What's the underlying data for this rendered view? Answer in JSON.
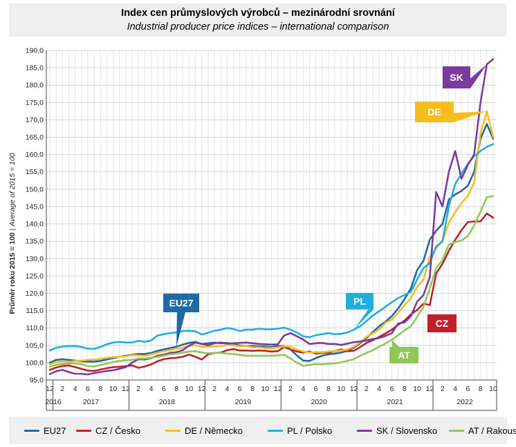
{
  "header": {
    "title_cs": "Index cen průmyslových výrobců – mezinárodní srovnání",
    "title_en": "Industrial producer price indices – international comparison"
  },
  "chart_data": {
    "type": "line",
    "ylabel_cs": "Průměr roku 2015 = 100",
    "ylabel_sep": " | ",
    "ylabel_en": "Average of 2015 = 100",
    "ylim": [
      95,
      190
    ],
    "yticks": [
      95,
      100,
      105,
      110,
      115,
      120,
      125,
      130,
      135,
      140,
      145,
      150,
      155,
      160,
      165,
      170,
      175,
      180,
      185,
      190
    ],
    "ytick_labels": [
      "95,0",
      "100,0",
      "105,0",
      "110,0",
      "115,0",
      "120,0",
      "125,0",
      "130,0",
      "135,0",
      "140,0",
      "145,0",
      "150,0",
      "155,0",
      "160,0",
      "165,0",
      "170,0",
      "175,0",
      "180,0",
      "185,0",
      "190,0"
    ],
    "months": [
      "12",
      "2",
      "4",
      "6",
      "8",
      "10",
      "12",
      "2",
      "4",
      "6",
      "8",
      "10",
      "12",
      "2",
      "4",
      "6",
      "8",
      "10",
      "12",
      "2",
      "4",
      "6",
      "8",
      "10",
      "12",
      "2",
      "4",
      "6",
      "8",
      "10",
      "12",
      "2",
      "4",
      "6",
      "8",
      "10"
    ],
    "years": [
      "2016",
      "2017",
      "2018",
      "2019",
      "2020",
      "2021",
      "2022"
    ],
    "x": [
      "2016-12",
      "2017-01",
      "2017-02",
      "2017-03",
      "2017-04",
      "2017-05",
      "2017-06",
      "2017-07",
      "2017-08",
      "2017-09",
      "2017-10",
      "2017-11",
      "2017-12",
      "2018-01",
      "2018-02",
      "2018-03",
      "2018-04",
      "2018-05",
      "2018-06",
      "2018-07",
      "2018-08",
      "2018-09",
      "2018-10",
      "2018-11",
      "2018-12",
      "2019-01",
      "2019-02",
      "2019-03",
      "2019-04",
      "2019-05",
      "2019-06",
      "2019-07",
      "2019-08",
      "2019-09",
      "2019-10",
      "2019-11",
      "2019-12",
      "2020-01",
      "2020-02",
      "2020-03",
      "2020-04",
      "2020-05",
      "2020-06",
      "2020-07",
      "2020-08",
      "2020-09",
      "2020-10",
      "2020-11",
      "2020-12",
      "2021-01",
      "2021-02",
      "2021-03",
      "2021-04",
      "2021-05",
      "2021-06",
      "2021-07",
      "2021-08",
      "2021-09",
      "2021-10",
      "2021-11",
      "2021-12",
      "2022-01",
      "2022-02",
      "2022-03",
      "2022-04",
      "2022-05",
      "2022-06",
      "2022-07",
      "2022-08",
      "2022-09",
      "2022-10"
    ],
    "grid": true,
    "legend_position": "bottom",
    "series": [
      {
        "name": "EU27",
        "color": "#1f6aa5",
        "values": [
          100.0,
          100.8,
          101.0,
          100.8,
          100.6,
          100.4,
          100.3,
          100.3,
          100.5,
          100.9,
          101.3,
          101.7,
          102.0,
          102.3,
          102.5,
          102.5,
          102.8,
          103.4,
          103.8,
          104.2,
          104.6,
          105.2,
          105.7,
          106.0,
          105.4,
          105.6,
          105.8,
          105.6,
          105.7,
          105.4,
          104.9,
          104.8,
          104.8,
          104.7,
          104.6,
          104.5,
          104.8,
          104.8,
          103.8,
          102.1,
          100.6,
          100.5,
          101.3,
          102.0,
          102.4,
          102.6,
          102.9,
          103.4,
          104.3,
          105.6,
          107.1,
          108.8,
          110.5,
          111.8,
          113.4,
          115.6,
          118.3,
          121.4,
          126.7,
          129.4,
          135.5,
          138.0,
          140.0,
          147.0,
          148.5,
          149.5,
          151.0,
          155.0,
          164.5,
          168.8,
          164.5
        ]
      },
      {
        "name": "CZ / Česko",
        "color": "#c0202b",
        "values": [
          97.9,
          98.6,
          99.0,
          99.2,
          98.7,
          98.2,
          97.7,
          97.6,
          98.0,
          98.4,
          98.7,
          98.8,
          99.0,
          99.2,
          98.5,
          98.9,
          99.5,
          100.4,
          101.0,
          101.3,
          101.4,
          101.7,
          102.3,
          101.7,
          100.9,
          102.4,
          102.8,
          102.9,
          103.6,
          103.9,
          103.5,
          103.5,
          103.4,
          103.5,
          103.4,
          103.2,
          103.3,
          104.5,
          103.8,
          103.2,
          102.9,
          103.2,
          102.6,
          102.8,
          102.9,
          103.3,
          103.8,
          103.3,
          103.4,
          104.5,
          105.7,
          106.5,
          107.4,
          108.4,
          109.5,
          110.9,
          112.1,
          113.9,
          115.2,
          117.0,
          116.6,
          125.7,
          128.5,
          132.2,
          135.4,
          138.2,
          140.5,
          140.7,
          140.7,
          143.0,
          141.8
        ]
      },
      {
        "name": "DE / Německo",
        "color": "#f5be1c",
        "values": [
          99.5,
          100.2,
          100.4,
          100.2,
          100.5,
          100.6,
          100.8,
          100.9,
          101.1,
          101.4,
          101.6,
          101.7,
          101.8,
          102.2,
          102.1,
          102.0,
          102.4,
          102.8,
          103.3,
          103.6,
          104.0,
          104.3,
          104.8,
          105.0,
          104.5,
          104.6,
          104.7,
          104.8,
          105.1,
          105.0,
          104.7,
          104.8,
          104.4,
          104.4,
          104.2,
          104.2,
          104.4,
          104.7,
          104.6,
          103.8,
          103.2,
          102.9,
          103.0,
          103.0,
          103.2,
          103.3,
          103.5,
          103.8,
          104.6,
          105.9,
          107.5,
          108.4,
          109.6,
          111.5,
          112.4,
          114.4,
          116.6,
          118.6,
          121.8,
          123.9,
          130.5,
          133.0,
          135.0,
          140.3,
          143.4,
          146.0,
          148.0,
          152.0,
          166.0,
          172.5,
          165.0
        ]
      },
      {
        "name": "PL / Polsko",
        "color": "#1faee0",
        "values": [
          103.5,
          104.3,
          104.6,
          104.8,
          104.8,
          104.5,
          104.0,
          104.0,
          104.5,
          105.3,
          105.8,
          106.0,
          105.8,
          105.8,
          106.3,
          106.0,
          106.4,
          107.8,
          108.2,
          108.5,
          108.7,
          109.1,
          109.2,
          109.0,
          108.1,
          108.6,
          109.2,
          109.5,
          110.0,
          109.7,
          109.1,
          109.5,
          109.5,
          109.8,
          109.6,
          109.6,
          109.8,
          110.1,
          109.5,
          108.7,
          107.6,
          107.3,
          107.9,
          108.2,
          108.5,
          108.2,
          108.3,
          108.7,
          109.5,
          110.5,
          112.0,
          113.6,
          114.8,
          116.1,
          117.4,
          118.6,
          119.5,
          120.4,
          124.0,
          127.3,
          128.7,
          133.5,
          135.0,
          145.0,
          151.5,
          154.5,
          157.3,
          159.5,
          161.0,
          162.2,
          163.0
        ]
      },
      {
        "name": "SK / Slovensko",
        "color": "#7a3a9e",
        "values": [
          96.7,
          97.5,
          97.9,
          97.3,
          96.8,
          96.8,
          96.6,
          97.0,
          97.3,
          97.6,
          97.8,
          98.2,
          98.7,
          100.0,
          101.0,
          100.9,
          101.3,
          102.0,
          102.3,
          102.8,
          103.0,
          103.6,
          104.9,
          105.8,
          105.4,
          105.0,
          105.6,
          105.8,
          105.5,
          105.6,
          105.7,
          105.8,
          105.6,
          105.4,
          105.3,
          105.2,
          105.3,
          107.8,
          108.5,
          107.6,
          106.7,
          105.4,
          105.6,
          105.7,
          105.4,
          105.4,
          105.1,
          105.5,
          105.9,
          106.1,
          106.4,
          106.8,
          107.1,
          107.7,
          108.5,
          111.3,
          111.6,
          113.4,
          117.6,
          119.5,
          124.7,
          149.2,
          145.0,
          155.0,
          161.0,
          153.0,
          157.0,
          160.0,
          175.0,
          186.0,
          187.5
        ]
      },
      {
        "name": "AT / Rakousko",
        "color": "#8fc856",
        "values": [
          98.8,
          99.4,
          99.6,
          99.8,
          99.8,
          99.5,
          99.0,
          98.9,
          99.3,
          99.7,
          100.2,
          100.5,
          100.7,
          100.8,
          101.2,
          101.2,
          101.4,
          101.7,
          102.0,
          102.4,
          102.6,
          102.9,
          103.2,
          103.3,
          102.9,
          102.7,
          102.8,
          102.8,
          102.6,
          102.5,
          102.2,
          102.0,
          102.0,
          102.0,
          102.0,
          102.0,
          102.1,
          102.3,
          101.2,
          100.0,
          99.1,
          99.3,
          99.6,
          99.5,
          99.7,
          99.8,
          100.1,
          100.5,
          101.0,
          102.0,
          102.8,
          103.6,
          104.6,
          105.5,
          106.6,
          107.9,
          109.3,
          110.5,
          113.2,
          116.1,
          121.4,
          127.3,
          129.6,
          134.0,
          134.8,
          135.2,
          136.5,
          139.5,
          143.5,
          147.7,
          148.0
        ]
      }
    ],
    "callouts": [
      {
        "label": "EU27",
        "series": "EU27",
        "color": "#1f6aa5"
      },
      {
        "label": "PL",
        "series": "PL / Polsko",
        "color": "#1faee0"
      },
      {
        "label": "CZ",
        "series": "CZ / Česko",
        "color": "#c0202b"
      },
      {
        "label": "AT",
        "series": "AT / Rakousko",
        "color": "#8fc856"
      },
      {
        "label": "SK",
        "series": "SK / Slovensko",
        "color": "#7a3a9e"
      },
      {
        "label": "DE",
        "series": "DE / Německo",
        "color": "#f5be1c"
      }
    ]
  }
}
